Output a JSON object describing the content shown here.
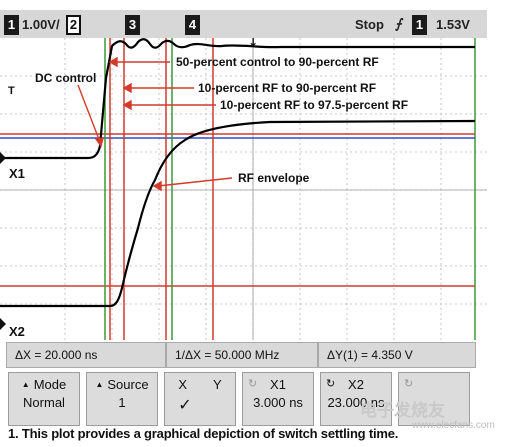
{
  "status_bar": {
    "ch1_number": "1",
    "ch1_scale": "1.00V/",
    "ch2_number": "2",
    "marker3": "3",
    "marker4": "4",
    "run_state": "Stop",
    "trigger_slope_icon": "rising-edge-icon",
    "trigger_channel": "1",
    "trigger_level": "1.53V"
  },
  "annotations": {
    "dc_control": "DC control",
    "rf_envelope": "RF envelope",
    "span_a": "50-percent control to 90-percent RF",
    "span_b": "10-percent RF to 90-percent RF",
    "span_c": "10-percent RF to 97.5-percent RF"
  },
  "trace_labels": {
    "ch1_ground": "X1",
    "ch2_ground": "X2",
    "trigger_marker": "T"
  },
  "measurements": {
    "delta_x": "ΔX = 20.000 ns",
    "inv_delta_x": "1/ΔX = 50.000 MHz",
    "delta_y": "ΔY(1) = 4.350 V"
  },
  "softkeys": {
    "mode": {
      "label": "Mode",
      "value": "Normal"
    },
    "source": {
      "label": "Source",
      "value": "1"
    },
    "xy": {
      "x_label": "X",
      "y_label": "Y",
      "check": "✓"
    },
    "x1": {
      "label": "X1",
      "value": "3.000 ns"
    },
    "x2": {
      "label": "X2",
      "value": "23.000 ns"
    }
  },
  "caption": "1. This plot provides a graphical depiction of switch settling time.",
  "watermark": "电子发烧友",
  "watermark_url": "www.elecfans.com",
  "colors": {
    "status_bg": "#d7d7d7",
    "grid": "#b5b5b5",
    "trace": "#000000",
    "cursor_red": "#d23b2b",
    "cursor_green": "#3a9a3a",
    "ref_blue": "#2b4fd3"
  }
}
